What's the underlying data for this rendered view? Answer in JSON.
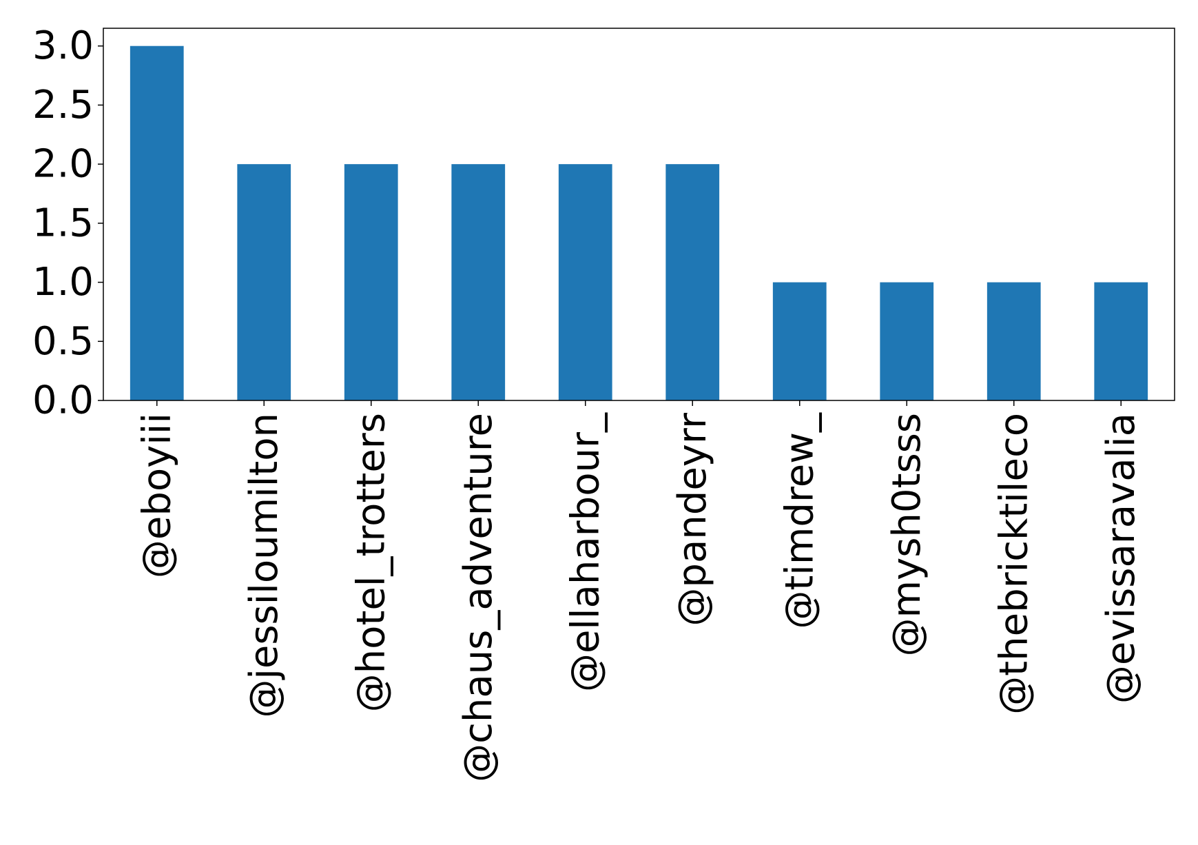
{
  "chart_data": {
    "type": "bar",
    "title": "",
    "xlabel": "",
    "ylabel": "",
    "categories": [
      "@eboyiii",
      "@jessiloumilton",
      "@hotel_trotters",
      "@chaus_adventure",
      "@ellaharbour_",
      "@pandeyrr",
      "@timdrew_",
      "@mysh0tsss",
      "@thebricktileco",
      "@evissaravalia"
    ],
    "values": [
      3,
      2,
      2,
      2,
      2,
      2,
      1,
      1,
      1,
      1
    ],
    "ylim": [
      0,
      3.15
    ],
    "yticks": [
      0.0,
      0.5,
      1.0,
      1.5,
      2.0,
      2.5,
      3.0
    ],
    "ytick_labels": [
      "0.0",
      "0.5",
      "1.0",
      "1.5",
      "2.0",
      "2.5",
      "3.0"
    ],
    "bar_color": "#1f77b4",
    "grid": false,
    "legend": "none"
  }
}
